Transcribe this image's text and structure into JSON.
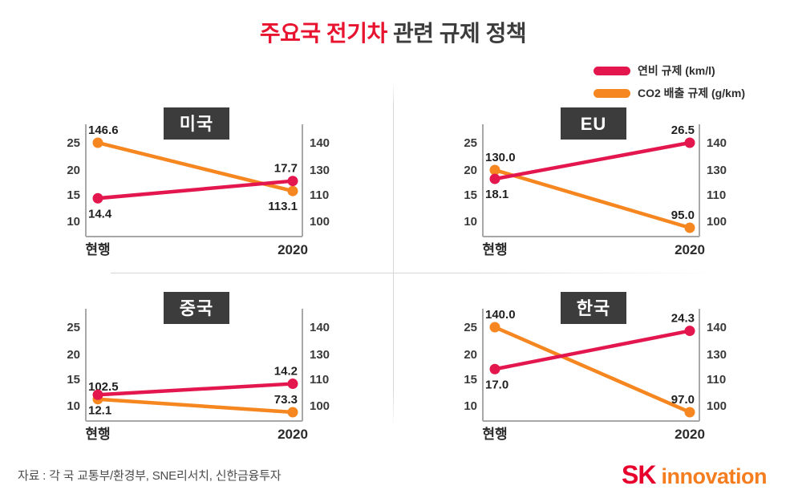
{
  "page_title": {
    "highlight": "주요국 전기차",
    "rest": " 관련 규제 정책"
  },
  "legend": {
    "items": [
      {
        "label": "연비 규제 (km/l)",
        "color": "#e3174e"
      },
      {
        "label": "CO2 배출 규제 (g/km)",
        "color": "#f6861f"
      }
    ]
  },
  "colors": {
    "accent_red": "#e8132f",
    "line_red": "#e3174e",
    "line_orange": "#f6861f",
    "title_box": "#3c3c3c",
    "logo_red": "#e8002d",
    "logo_orange": "#f47d20"
  },
  "chart_data": [
    {
      "type": "line",
      "title": "미국",
      "x": [
        "현행",
        "2020"
      ],
      "left_axis_ticks": [
        25,
        20,
        15,
        10
      ],
      "right_axis_ticks": [
        140,
        130,
        110,
        100
      ],
      "series": [
        {
          "id": "fuel-economy",
          "name": "연비 규제 (km/l)",
          "axis": "left",
          "color": "#e3174e",
          "values": [
            14.4,
            17.7
          ],
          "value_labels": [
            "14.4",
            "17.7"
          ],
          "label_pos": [
            "below",
            "above"
          ]
        },
        {
          "id": "co2-emission",
          "name": "CO2 배출 규제 (g/km)",
          "axis": "right",
          "color": "#f6861f",
          "values": [
            146.6,
            113.1
          ],
          "value_labels": [
            "146.6",
            "113.1"
          ],
          "label_pos": [
            "above",
            "below"
          ]
        }
      ]
    },
    {
      "type": "line",
      "title": "EU",
      "x": [
        "현행",
        "2020"
      ],
      "left_axis_ticks": [
        25,
        20,
        15,
        10
      ],
      "right_axis_ticks": [
        140,
        130,
        110,
        100
      ],
      "series": [
        {
          "id": "fuel-economy",
          "name": "연비 규제 (km/l)",
          "axis": "left",
          "color": "#e3174e",
          "values": [
            18.1,
            26.5
          ],
          "value_labels": [
            "18.1",
            "26.5"
          ],
          "label_pos": [
            "below",
            "above"
          ]
        },
        {
          "id": "co2-emission",
          "name": "CO2 배출 규제 (g/km)",
          "axis": "right",
          "color": "#f6861f",
          "values": [
            130.0,
            95.0
          ],
          "value_labels": [
            "130.0",
            "95.0"
          ],
          "label_pos": [
            "above",
            "above"
          ]
        }
      ]
    },
    {
      "type": "line",
      "title": "중국",
      "x": [
        "현행",
        "2020"
      ],
      "left_axis_ticks": [
        25,
        20,
        15,
        10
      ],
      "right_axis_ticks": [
        140,
        130,
        110,
        100
      ],
      "series": [
        {
          "id": "fuel-economy",
          "name": "연비 규제 (km/l)",
          "axis": "left",
          "color": "#e3174e",
          "values": [
            12.1,
            14.2
          ],
          "value_labels": [
            "12.1",
            "14.2"
          ],
          "label_pos": [
            "below",
            "above"
          ]
        },
        {
          "id": "co2-emission",
          "name": "CO2 배출 규제 (g/km)",
          "axis": "right",
          "color": "#f6861f",
          "values": [
            102.5,
            73.3
          ],
          "value_labels": [
            "102.5",
            "73.3"
          ],
          "label_pos": [
            "above",
            "above"
          ]
        }
      ]
    },
    {
      "type": "line",
      "title": "한국",
      "x": [
        "현행",
        "2020"
      ],
      "left_axis_ticks": [
        25,
        20,
        15,
        10
      ],
      "right_axis_ticks": [
        140,
        130,
        110,
        100
      ],
      "series": [
        {
          "id": "fuel-economy",
          "name": "연비 규제 (km/l)",
          "axis": "left",
          "color": "#e3174e",
          "values": [
            17.0,
            24.3
          ],
          "value_labels": [
            "17.0",
            "24.3"
          ],
          "label_pos": [
            "below",
            "above"
          ]
        },
        {
          "id": "co2-emission",
          "name": "CO2 배출 규제 (g/km)",
          "axis": "right",
          "color": "#f6861f",
          "values": [
            140.0,
            97.0
          ],
          "value_labels": [
            "140.0",
            "97.0"
          ],
          "label_pos": [
            "above",
            "above"
          ]
        }
      ]
    }
  ],
  "footer": {
    "source": "자료 : 각 국 교통부/환경부, SNE리서치, 신한금융투자"
  },
  "logo": {
    "sk": "SK",
    "word": "innovation"
  }
}
